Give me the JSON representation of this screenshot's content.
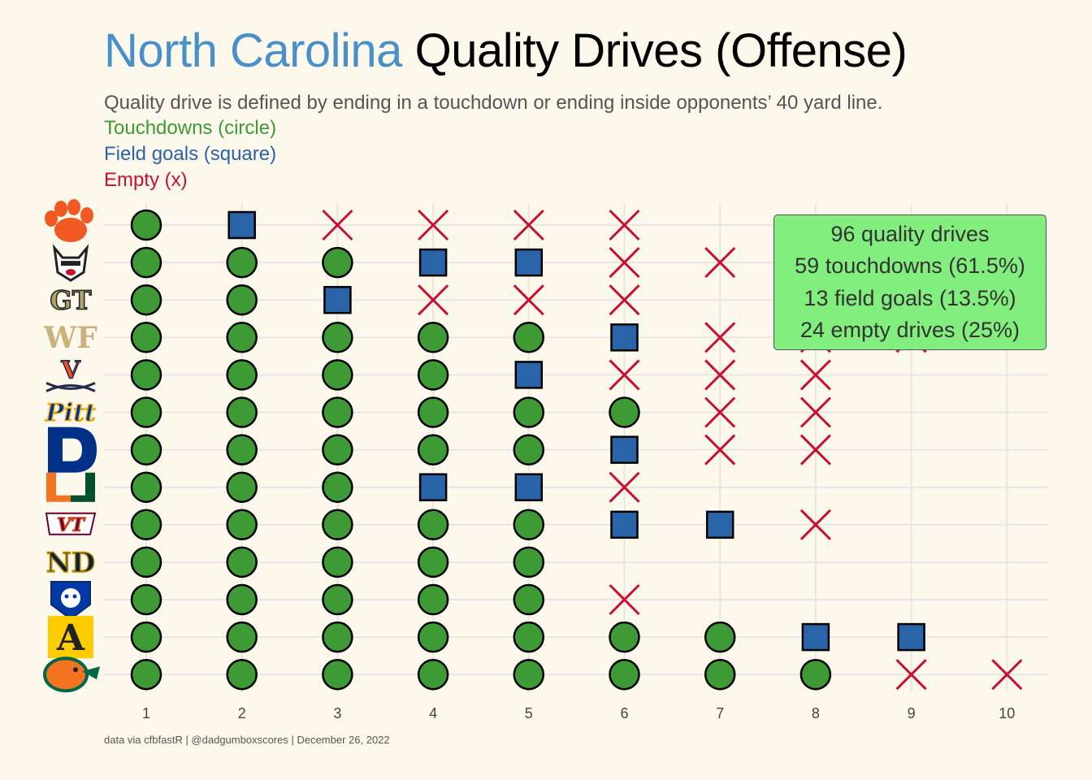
{
  "title": {
    "team": "North Carolina",
    "rest": "Quality Drives (Offense)"
  },
  "subtitle": "Quality drive is defined by ending in a touchdown or ending inside opponents’ 40 yard line.",
  "legend": {
    "touchdown": "Touchdowns (circle)",
    "field_goal": "Field goals (square)",
    "empty": "Empty (x)"
  },
  "summary": {
    "line1": "96 quality drives",
    "line2": "59 touchdowns (61.5%)",
    "line3": "13 field goals (13.5%)",
    "line4": "24 empty drives (25%)"
  },
  "caption": "data via cfbfastR | @dadgumboxscores | December 26, 2022",
  "colors": {
    "background": "#fdf8ec",
    "touchdown": "#3d9a35",
    "field_goal": "#2a64a8",
    "empty": "#c8102e",
    "title_team": "#4a90c8",
    "summary_box": "#82ee7e",
    "grid": "#e6e6e6"
  },
  "chart_data": {
    "type": "scatter",
    "x": [
      1,
      2,
      3,
      4,
      5,
      6,
      7,
      8,
      9,
      10
    ],
    "xlim": [
      1,
      10
    ],
    "marker_legend": {
      "TD": "circle",
      "FG": "square",
      "X": "x"
    },
    "rows": [
      {
        "opponent_logo": "clemson-paw-logo",
        "drives": [
          "TD",
          "FG",
          "X",
          "X",
          "X",
          "X"
        ]
      },
      {
        "opponent_logo": "nc-state-wolf-logo",
        "drives": [
          "TD",
          "TD",
          "TD",
          "FG",
          "FG",
          "X",
          "X"
        ]
      },
      {
        "opponent_logo": "georgia-tech-gt-logo",
        "drives": [
          "TD",
          "TD",
          "FG",
          "X",
          "X",
          "X"
        ]
      },
      {
        "opponent_logo": "wake-forest-wf-logo",
        "drives": [
          "TD",
          "TD",
          "TD",
          "TD",
          "TD",
          "FG",
          "X",
          "X",
          "X"
        ]
      },
      {
        "opponent_logo": "virginia-v-sabres-logo",
        "drives": [
          "TD",
          "TD",
          "TD",
          "TD",
          "FG",
          "X",
          "X",
          "X"
        ]
      },
      {
        "opponent_logo": "pitt-script-logo",
        "drives": [
          "TD",
          "TD",
          "TD",
          "TD",
          "TD",
          "TD",
          "X",
          "X"
        ]
      },
      {
        "opponent_logo": "duke-d-logo",
        "drives": [
          "TD",
          "TD",
          "TD",
          "TD",
          "TD",
          "FG",
          "X",
          "X"
        ]
      },
      {
        "opponent_logo": "miami-u-logo",
        "drives": [
          "TD",
          "TD",
          "TD",
          "FG",
          "FG",
          "X"
        ]
      },
      {
        "opponent_logo": "virginia-tech-vt-logo",
        "drives": [
          "TD",
          "TD",
          "TD",
          "TD",
          "TD",
          "FG",
          "FG",
          "X"
        ]
      },
      {
        "opponent_logo": "notre-dame-nd-logo",
        "drives": [
          "TD",
          "TD",
          "TD",
          "TD",
          "TD"
        ]
      },
      {
        "opponent_logo": "georgia-state-panther-logo",
        "drives": [
          "TD",
          "TD",
          "TD",
          "TD",
          "TD",
          "X"
        ]
      },
      {
        "opponent_logo": "appalachian-state-a-logo",
        "drives": [
          "TD",
          "TD",
          "TD",
          "TD",
          "TD",
          "TD",
          "TD",
          "FG",
          "FG"
        ]
      },
      {
        "opponent_logo": "famu-rattler-logo",
        "drives": [
          "TD",
          "TD",
          "TD",
          "TD",
          "TD",
          "TD",
          "TD",
          "TD",
          "X",
          "X"
        ]
      }
    ]
  }
}
